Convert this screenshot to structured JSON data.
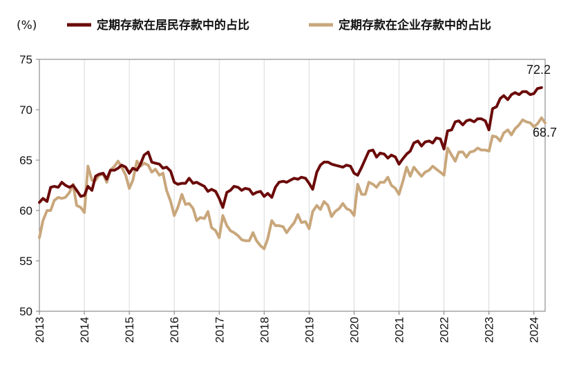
{
  "unit_label": "(%)",
  "chart_data": {
    "type": "line",
    "title": "",
    "xlabel": "",
    "ylabel": "(%)",
    "ylim": [
      50,
      75
    ],
    "yticks": [
      50,
      55,
      60,
      65,
      70,
      75
    ],
    "xlim": [
      2013.0,
      2024.25
    ],
    "xticks": [
      "2013",
      "2014",
      "2015",
      "2016",
      "2017",
      "2018",
      "2019",
      "2020",
      "2021",
      "2022",
      "2023",
      "2024"
    ],
    "grid": "vertical",
    "legend": "top",
    "series": [
      {
        "name": "定期存款在居民存款中的占比",
        "color": "#6b0a0a",
        "end_label": "72.2",
        "points": [
          [
            2013.0,
            60.8
          ],
          [
            2013.08,
            61.2
          ],
          [
            2013.17,
            60.9
          ],
          [
            2013.25,
            62.3
          ],
          [
            2013.33,
            62.4
          ],
          [
            2013.42,
            62.3
          ],
          [
            2013.5,
            62.8
          ],
          [
            2013.58,
            62.5
          ],
          [
            2013.67,
            62.3
          ],
          [
            2013.75,
            62.5
          ],
          [
            2013.83,
            62.0
          ],
          [
            2013.92,
            61.4
          ],
          [
            2014.0,
            61.5
          ],
          [
            2014.08,
            62.4
          ],
          [
            2014.17,
            62.0
          ],
          [
            2014.25,
            63.4
          ],
          [
            2014.33,
            63.6
          ],
          [
            2014.42,
            63.7
          ],
          [
            2014.5,
            63.1
          ],
          [
            2014.58,
            64.0
          ],
          [
            2014.67,
            64.0
          ],
          [
            2014.75,
            64.2
          ],
          [
            2014.83,
            64.5
          ],
          [
            2014.92,
            64.3
          ],
          [
            2015.0,
            63.7
          ],
          [
            2015.08,
            64.2
          ],
          [
            2015.17,
            64.0
          ],
          [
            2015.25,
            64.6
          ],
          [
            2015.33,
            65.5
          ],
          [
            2015.42,
            65.8
          ],
          [
            2015.5,
            64.8
          ],
          [
            2015.58,
            64.7
          ],
          [
            2015.67,
            64.6
          ],
          [
            2015.75,
            64.2
          ],
          [
            2015.83,
            64.3
          ],
          [
            2015.92,
            63.9
          ],
          [
            2016.0,
            62.8
          ],
          [
            2016.08,
            62.6
          ],
          [
            2016.17,
            62.7
          ],
          [
            2016.25,
            62.7
          ],
          [
            2016.33,
            63.2
          ],
          [
            2016.42,
            62.7
          ],
          [
            2016.5,
            62.8
          ],
          [
            2016.58,
            62.6
          ],
          [
            2016.67,
            62.4
          ],
          [
            2016.75,
            61.9
          ],
          [
            2016.83,
            62.1
          ],
          [
            2016.92,
            61.9
          ],
          [
            2017.0,
            61.2
          ],
          [
            2017.08,
            60.3
          ],
          [
            2017.17,
            61.8
          ],
          [
            2017.25,
            62.0
          ],
          [
            2017.33,
            62.4
          ],
          [
            2017.42,
            62.3
          ],
          [
            2017.5,
            62.0
          ],
          [
            2017.58,
            62.2
          ],
          [
            2017.67,
            62.1
          ],
          [
            2017.75,
            61.6
          ],
          [
            2017.83,
            61.8
          ],
          [
            2017.92,
            61.9
          ],
          [
            2018.0,
            61.4
          ],
          [
            2018.08,
            61.7
          ],
          [
            2018.17,
            61.3
          ],
          [
            2018.25,
            62.3
          ],
          [
            2018.33,
            62.8
          ],
          [
            2018.42,
            62.9
          ],
          [
            2018.5,
            62.8
          ],
          [
            2018.58,
            63.0
          ],
          [
            2018.67,
            63.2
          ],
          [
            2018.75,
            63.1
          ],
          [
            2018.83,
            63.3
          ],
          [
            2018.92,
            63.2
          ],
          [
            2019.0,
            62.7
          ],
          [
            2019.08,
            62.1
          ],
          [
            2019.17,
            63.8
          ],
          [
            2019.25,
            64.5
          ],
          [
            2019.33,
            64.8
          ],
          [
            2019.42,
            64.8
          ],
          [
            2019.5,
            64.6
          ],
          [
            2019.58,
            64.5
          ],
          [
            2019.67,
            64.4
          ],
          [
            2019.75,
            64.3
          ],
          [
            2019.83,
            64.5
          ],
          [
            2019.92,
            64.4
          ],
          [
            2020.0,
            63.7
          ],
          [
            2020.08,
            63.5
          ],
          [
            2020.17,
            64.3
          ],
          [
            2020.25,
            65.1
          ],
          [
            2020.33,
            65.9
          ],
          [
            2020.42,
            66.0
          ],
          [
            2020.5,
            65.3
          ],
          [
            2020.58,
            65.7
          ],
          [
            2020.67,
            65.6
          ],
          [
            2020.75,
            65.2
          ],
          [
            2020.83,
            65.5
          ],
          [
            2020.92,
            65.3
          ],
          [
            2021.0,
            64.6
          ],
          [
            2021.08,
            65.1
          ],
          [
            2021.17,
            65.6
          ],
          [
            2021.25,
            65.9
          ],
          [
            2021.33,
            66.7
          ],
          [
            2021.42,
            66.9
          ],
          [
            2021.5,
            66.4
          ],
          [
            2021.58,
            66.8
          ],
          [
            2021.67,
            66.9
          ],
          [
            2021.75,
            66.7
          ],
          [
            2021.83,
            67.2
          ],
          [
            2021.92,
            67.1
          ],
          [
            2022.0,
            66.1
          ],
          [
            2022.08,
            67.9
          ],
          [
            2022.17,
            68.0
          ],
          [
            2022.25,
            68.8
          ],
          [
            2022.33,
            68.9
          ],
          [
            2022.42,
            68.5
          ],
          [
            2022.5,
            68.9
          ],
          [
            2022.58,
            69.0
          ],
          [
            2022.67,
            68.8
          ],
          [
            2022.75,
            69.1
          ],
          [
            2022.83,
            69.1
          ],
          [
            2022.92,
            68.9
          ],
          [
            2023.0,
            68.0
          ],
          [
            2023.08,
            70.1
          ],
          [
            2023.17,
            70.3
          ],
          [
            2023.25,
            71.1
          ],
          [
            2023.33,
            71.4
          ],
          [
            2023.42,
            71.0
          ],
          [
            2023.5,
            71.5
          ],
          [
            2023.58,
            71.7
          ],
          [
            2023.67,
            71.5
          ],
          [
            2023.75,
            71.8
          ],
          [
            2023.83,
            71.8
          ],
          [
            2023.92,
            71.5
          ],
          [
            2024.0,
            71.6
          ],
          [
            2024.08,
            72.1
          ],
          [
            2024.17,
            72.2
          ]
        ]
      },
      {
        "name": "定期存款在企业存款中的占比",
        "color": "#c9a77c",
        "end_label": "68.7",
        "points": [
          [
            2013.0,
            57.3
          ],
          [
            2013.08,
            59.0
          ],
          [
            2013.17,
            60.0
          ],
          [
            2013.25,
            60.0
          ],
          [
            2013.33,
            61.0
          ],
          [
            2013.42,
            61.3
          ],
          [
            2013.5,
            61.2
          ],
          [
            2013.58,
            61.3
          ],
          [
            2013.67,
            61.8
          ],
          [
            2013.75,
            62.6
          ],
          [
            2013.83,
            60.5
          ],
          [
            2013.92,
            60.3
          ],
          [
            2014.0,
            59.8
          ],
          [
            2014.08,
            64.4
          ],
          [
            2014.17,
            63.0
          ],
          [
            2014.25,
            63.0
          ],
          [
            2014.33,
            63.5
          ],
          [
            2014.42,
            63.6
          ],
          [
            2014.5,
            62.8
          ],
          [
            2014.58,
            64.0
          ],
          [
            2014.67,
            64.4
          ],
          [
            2014.75,
            64.9
          ],
          [
            2014.83,
            64.3
          ],
          [
            2014.92,
            63.5
          ],
          [
            2015.0,
            62.2
          ],
          [
            2015.08,
            63.0
          ],
          [
            2015.17,
            64.9
          ],
          [
            2015.25,
            64.4
          ],
          [
            2015.33,
            64.7
          ],
          [
            2015.42,
            64.5
          ],
          [
            2015.5,
            63.8
          ],
          [
            2015.58,
            64.1
          ],
          [
            2015.67,
            63.5
          ],
          [
            2015.75,
            63.7
          ],
          [
            2015.83,
            62.0
          ],
          [
            2015.92,
            60.9
          ],
          [
            2016.0,
            59.5
          ],
          [
            2016.08,
            60.3
          ],
          [
            2016.17,
            61.6
          ],
          [
            2016.25,
            60.6
          ],
          [
            2016.33,
            60.7
          ],
          [
            2016.42,
            60.2
          ],
          [
            2016.5,
            59.0
          ],
          [
            2016.58,
            59.3
          ],
          [
            2016.67,
            59.2
          ],
          [
            2016.75,
            59.9
          ],
          [
            2016.83,
            58.3
          ],
          [
            2016.92,
            58.0
          ],
          [
            2017.0,
            57.3
          ],
          [
            2017.08,
            59.5
          ],
          [
            2017.17,
            58.5
          ],
          [
            2017.25,
            58.0
          ],
          [
            2017.33,
            57.8
          ],
          [
            2017.42,
            57.5
          ],
          [
            2017.5,
            57.1
          ],
          [
            2017.58,
            57.0
          ],
          [
            2017.67,
            57.0
          ],
          [
            2017.75,
            57.8
          ],
          [
            2017.83,
            57.0
          ],
          [
            2017.92,
            56.5
          ],
          [
            2018.0,
            56.2
          ],
          [
            2018.08,
            57.2
          ],
          [
            2018.17,
            59.0
          ],
          [
            2018.25,
            58.5
          ],
          [
            2018.33,
            58.5
          ],
          [
            2018.42,
            58.4
          ],
          [
            2018.5,
            57.8
          ],
          [
            2018.58,
            58.3
          ],
          [
            2018.67,
            58.8
          ],
          [
            2018.75,
            59.6
          ],
          [
            2018.83,
            58.8
          ],
          [
            2018.92,
            58.9
          ],
          [
            2019.0,
            58.2
          ],
          [
            2019.08,
            59.9
          ],
          [
            2019.17,
            60.5
          ],
          [
            2019.25,
            60.1
          ],
          [
            2019.33,
            60.9
          ],
          [
            2019.42,
            60.5
          ],
          [
            2019.5,
            59.4
          ],
          [
            2019.58,
            59.9
          ],
          [
            2019.67,
            60.2
          ],
          [
            2019.75,
            60.7
          ],
          [
            2019.83,
            60.2
          ],
          [
            2019.92,
            60.0
          ],
          [
            2020.0,
            59.5
          ],
          [
            2020.08,
            62.6
          ],
          [
            2020.17,
            61.6
          ],
          [
            2020.25,
            61.6
          ],
          [
            2020.33,
            62.8
          ],
          [
            2020.42,
            62.6
          ],
          [
            2020.5,
            62.3
          ],
          [
            2020.58,
            62.8
          ],
          [
            2020.67,
            62.8
          ],
          [
            2020.75,
            63.3
          ],
          [
            2020.83,
            62.5
          ],
          [
            2020.92,
            62.2
          ],
          [
            2021.0,
            61.6
          ],
          [
            2021.08,
            62.8
          ],
          [
            2021.17,
            64.3
          ],
          [
            2021.25,
            63.4
          ],
          [
            2021.33,
            64.3
          ],
          [
            2021.42,
            63.8
          ],
          [
            2021.5,
            63.4
          ],
          [
            2021.58,
            63.8
          ],
          [
            2021.67,
            64.0
          ],
          [
            2021.75,
            64.4
          ],
          [
            2021.83,
            64.1
          ],
          [
            2021.92,
            63.8
          ],
          [
            2022.0,
            63.5
          ],
          [
            2022.08,
            66.2
          ],
          [
            2022.17,
            65.5
          ],
          [
            2022.25,
            64.9
          ],
          [
            2022.33,
            65.8
          ],
          [
            2022.42,
            65.8
          ],
          [
            2022.5,
            65.3
          ],
          [
            2022.58,
            65.8
          ],
          [
            2022.67,
            65.9
          ],
          [
            2022.75,
            66.2
          ],
          [
            2022.83,
            66.0
          ],
          [
            2022.92,
            66.0
          ],
          [
            2023.0,
            65.9
          ],
          [
            2023.08,
            67.4
          ],
          [
            2023.17,
            67.3
          ],
          [
            2023.25,
            66.9
          ],
          [
            2023.33,
            67.7
          ],
          [
            2023.42,
            68.0
          ],
          [
            2023.5,
            67.5
          ],
          [
            2023.58,
            68.1
          ],
          [
            2023.67,
            68.5
          ],
          [
            2023.75,
            69.0
          ],
          [
            2023.83,
            68.8
          ],
          [
            2023.92,
            68.7
          ],
          [
            2024.0,
            68.3
          ],
          [
            2024.08,
            68.6
          ],
          [
            2024.17,
            69.2
          ],
          [
            2024.25,
            68.7
          ]
        ]
      }
    ]
  }
}
